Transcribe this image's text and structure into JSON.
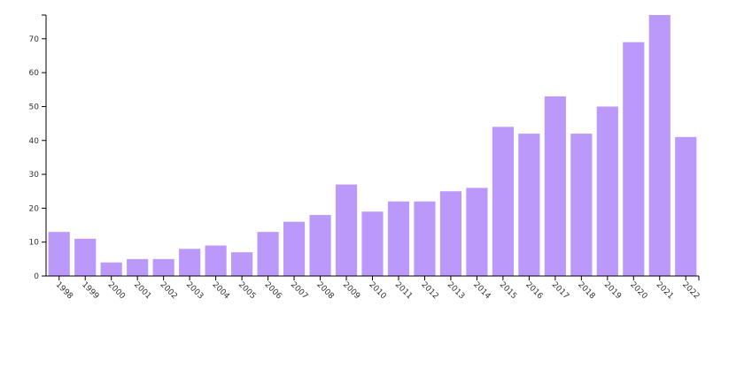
{
  "chart_data": {
    "type": "bar",
    "title": "",
    "xlabel": "",
    "ylabel": "",
    "categories": [
      "1998",
      "1999",
      "2000",
      "2001",
      "2002",
      "2003",
      "2004",
      "2005",
      "2006",
      "2007",
      "2008",
      "2009",
      "2010",
      "2011",
      "2012",
      "2013",
      "2014",
      "2015",
      "2016",
      "2017",
      "2018",
      "2019",
      "2020",
      "2021",
      "2022"
    ],
    "values": [
      13,
      11,
      4,
      5,
      5,
      8,
      9,
      7,
      13,
      16,
      18,
      27,
      19,
      22,
      22,
      25,
      26,
      44,
      42,
      53,
      42,
      50,
      69,
      77,
      41
    ],
    "ylim": [
      0,
      77
    ],
    "yticks": [
      0,
      10,
      20,
      30,
      40,
      50,
      60,
      70
    ],
    "grid": false,
    "legend": "none",
    "bar_color": "#bb99fb"
  }
}
